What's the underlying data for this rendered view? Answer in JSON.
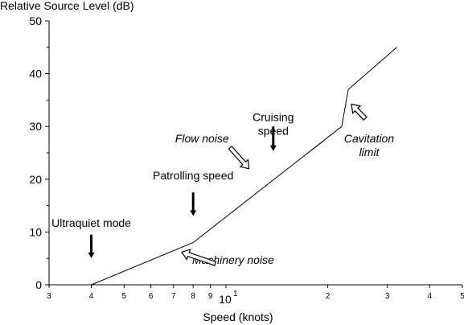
{
  "chart_data": {
    "type": "line",
    "title": "",
    "xlabel": "Speed (knots)",
    "ylabel": "Relative Source Level (dB)",
    "xscale": "log",
    "xlim": [
      3,
      50
    ],
    "ylim": [
      0,
      50
    ],
    "grid": false,
    "x_major_ticks": [
      {
        "value": 3,
        "label": "3"
      },
      {
        "value": 4,
        "label": "4"
      },
      {
        "value": 5,
        "label": "5"
      },
      {
        "value": 6,
        "label": "6"
      },
      {
        "value": 7,
        "label": "7"
      },
      {
        "value": 8,
        "label": "8"
      },
      {
        "value": 9,
        "label": "9"
      },
      {
        "value": 10,
        "label": "10",
        "exponent": "1"
      },
      {
        "value": 20,
        "label": "2"
      },
      {
        "value": 30,
        "label": "3"
      },
      {
        "value": 40,
        "label": "4"
      },
      {
        "value": 50,
        "label": "5"
      }
    ],
    "y_ticks": [
      0,
      10,
      20,
      30,
      40,
      50
    ],
    "series": [
      {
        "x": [
          4,
          8,
          22,
          23,
          32
        ],
        "y": [
          0,
          8,
          30,
          37,
          45
        ]
      }
    ],
    "annotations": [
      {
        "text": "Ultraquiet mode",
        "italic": false,
        "x": 4.0,
        "y": 11,
        "arrow": "solid-down",
        "arrow_x": 4.0,
        "arrow_y": [
          9.5,
          5.2
        ]
      },
      {
        "text": "Patrolling speed",
        "italic": false,
        "x": 8.0,
        "y": 20,
        "arrow": "solid-down",
        "arrow_x": 8.0,
        "arrow_y": [
          17.5,
          13.2
        ]
      },
      {
        "text": "Cruising\nspeed",
        "italic": false,
        "x": 13.8,
        "y": 31,
        "arrow": "solid-down",
        "arrow_x": 13.8,
        "arrow_y": [
          30.0,
          25.5
        ]
      },
      {
        "text": "Flow noise",
        "italic": true,
        "x": 8.5,
        "y": 27,
        "arrow": "hollow",
        "arrow_from": [
          10.3,
          26.0
        ],
        "arrow_to": [
          11.7,
          22.0
        ]
      },
      {
        "text": "Machinery noise",
        "italic": true,
        "x": 10.5,
        "y": 4,
        "arrow": "hollow",
        "arrow_from": [
          9.3,
          4.0
        ],
        "arrow_to": [
          7.4,
          6.2
        ]
      },
      {
        "text": "Cavitation\nlimit",
        "italic": true,
        "x": 26.5,
        "y": 27,
        "arrow": "hollow",
        "arrow_from": [
          25.8,
          31.5
        ],
        "arrow_to": [
          23.5,
          34.2
        ]
      }
    ]
  }
}
